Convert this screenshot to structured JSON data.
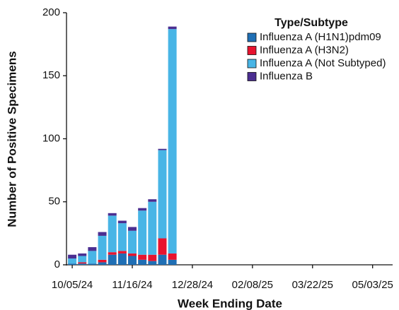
{
  "chart_data": {
    "type": "stacked-bar",
    "x_label": "Week Ending Date",
    "y_label": "Number of Positive Specimens",
    "legend_title": "Type/Subtype",
    "x": [
      "10/05/24",
      "10/12/24",
      "10/19/24",
      "10/26/24",
      "11/02/24",
      "11/09/24",
      "11/16/24",
      "11/23/24",
      "11/30/24",
      "12/07/24",
      "12/14/24"
    ],
    "xlim": [
      "10/01/24",
      "05/17/25"
    ],
    "xticks": [
      "10/05/24",
      "11/16/24",
      "12/28/24",
      "02/08/25",
      "03/22/25",
      "05/03/25"
    ],
    "ylim": [
      0,
      200
    ],
    "yticks": [
      0,
      50,
      100,
      150,
      200
    ],
    "series": [
      {
        "name": "Influenza A (H1N1)pdm09",
        "color": "#1f6fb5",
        "values": [
          1,
          1,
          1,
          2,
          8,
          9,
          7,
          4,
          3,
          8,
          4
        ]
      },
      {
        "name": "Influenza A (H3N2)",
        "color": "#e8132e",
        "values": [
          0,
          1,
          0,
          2,
          2,
          2,
          2,
          4,
          5,
          13,
          5
        ]
      },
      {
        "name": "Influenza A (Not Subtyped)",
        "color": "#48b5e6",
        "values": [
          4,
          5,
          10,
          19,
          29,
          22,
          18,
          35,
          42,
          70,
          178
        ]
      },
      {
        "name": "Influenza B",
        "color": "#4b2e91",
        "values": [
          3,
          2,
          3,
          3,
          2,
          2,
          3,
          2,
          2,
          1,
          2
        ]
      }
    ]
  }
}
